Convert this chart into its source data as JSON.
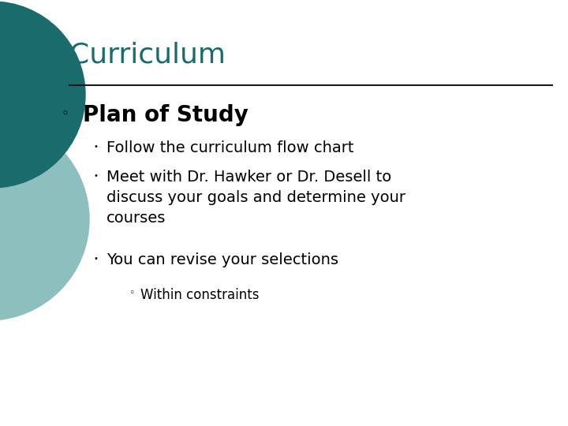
{
  "title": "Curriculum",
  "title_color": "#1a6b6b",
  "background_color": "#ffffff",
  "circle_dark_color": "#1a6b6b",
  "circle_light_color": "#8dbfbf",
  "divider_color": "#1a1a1a",
  "level1_bullet": "◦",
  "level1_text": "Plan of Study",
  "level1_color": "#000000",
  "level1_fontsize": 20,
  "level2_bullet": "•",
  "level2_color": "#000000",
  "level2_fontsize": 14,
  "level2_items": [
    "Follow the curriculum flow chart",
    "Meet with Dr. Hawker or Dr. Desell to\ndiscuss your goals and determine your\ncourses",
    "You can revise your selections"
  ],
  "level3_bullet": "◦",
  "level3_color": "#000000",
  "level3_fontsize": 12,
  "level3_items": [
    "Within constraints"
  ],
  "title_fontsize": 26,
  "fig_width": 7.2,
  "fig_height": 5.4,
  "dpi": 100
}
